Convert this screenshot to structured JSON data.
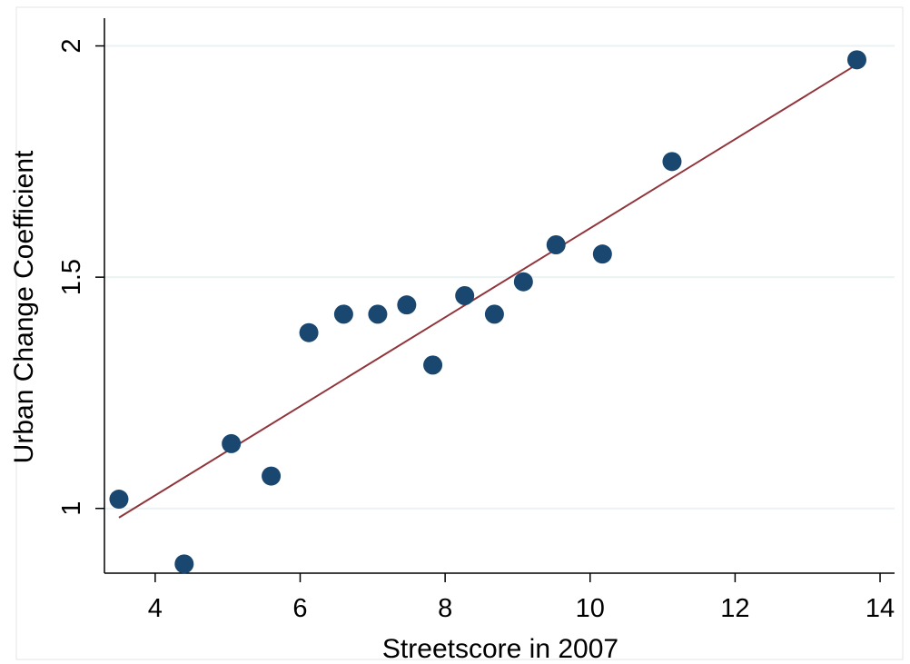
{
  "chart_data": {
    "type": "scatter",
    "title": "",
    "xlabel": "Streetscore in 2007",
    "ylabel": "Urban Change Coefficient",
    "xlim": [
      3.3,
      14.2
    ],
    "ylim": [
      0.86,
      2.06
    ],
    "x_ticks": [
      4,
      6,
      8,
      10,
      12,
      14
    ],
    "y_ticks": [
      1,
      1.5,
      2
    ],
    "x_tick_labels": [
      "4",
      "6",
      "8",
      "10",
      "12",
      "14"
    ],
    "y_tick_labels": [
      "1",
      "1.5",
      "2"
    ],
    "grid": "horizontal",
    "series": [
      {
        "points": [
          {
            "x": 3.5,
            "y": 1.02
          },
          {
            "x": 4.4,
            "y": 0.88
          },
          {
            "x": 5.05,
            "y": 1.14
          },
          {
            "x": 5.6,
            "y": 1.07
          },
          {
            "x": 6.12,
            "y": 1.38
          },
          {
            "x": 6.6,
            "y": 1.42
          },
          {
            "x": 7.07,
            "y": 1.42
          },
          {
            "x": 7.47,
            "y": 1.44
          },
          {
            "x": 7.83,
            "y": 1.31
          },
          {
            "x": 8.27,
            "y": 1.46
          },
          {
            "x": 8.68,
            "y": 1.42
          },
          {
            "x": 9.08,
            "y": 1.49
          },
          {
            "x": 9.53,
            "y": 1.57
          },
          {
            "x": 10.17,
            "y": 1.55
          },
          {
            "x": 11.13,
            "y": 1.75
          },
          {
            "x": 13.68,
            "y": 1.97
          }
        ]
      }
    ],
    "fit_line": {
      "x": [
        3.5,
        13.68
      ],
      "y": [
        0.98,
        1.96
      ]
    },
    "colors": {
      "marker": "#1a476f",
      "fit_line": "#90353b",
      "grid": "#eaf2f3",
      "axis": "#000000",
      "plot_frame": "#e5e5e5"
    }
  }
}
